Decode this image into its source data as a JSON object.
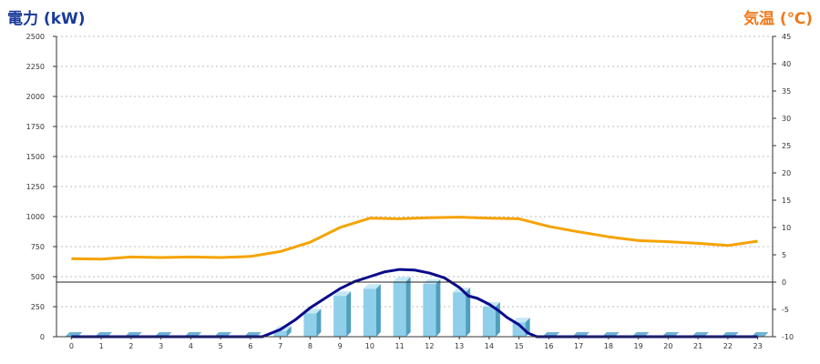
{
  "chart_data": {
    "type": "bar",
    "y_left_label": "電力 (kW)",
    "y_right_label": "気温 (℃)",
    "y_left_ticks": [
      "0",
      "250",
      "500",
      "750",
      "1000",
      "1250",
      "1500",
      "1750",
      "2000",
      "2250",
      "2500"
    ],
    "y_right_ticks": [
      "-10",
      "-5",
      "0",
      "5",
      "10",
      "15",
      "20",
      "25",
      "30",
      "35",
      "40",
      "45"
    ],
    "ylim_left": [
      0,
      2500
    ],
    "ylim_right": [
      -10,
      45
    ],
    "categories": [
      "0",
      "1",
      "2",
      "3",
      "4",
      "5",
      "6",
      "7",
      "8",
      "9",
      "10",
      "11",
      "12",
      "13",
      "14",
      "15",
      "16",
      "17",
      "18",
      "19",
      "20",
      "21",
      "22",
      "23"
    ],
    "grid": true,
    "series": [
      {
        "kind": "bar",
        "axis": "left",
        "values": [
          0,
          0,
          0,
          0,
          0,
          0,
          0,
          50,
          195,
          340,
          400,
          460,
          440,
          370,
          250,
          120,
          0,
          0,
          0,
          0,
          0,
          0,
          0,
          0
        ]
      },
      {
        "kind": "line",
        "axis": "left",
        "x": [
          0,
          1,
          2,
          3,
          4,
          5,
          6,
          6.4,
          7,
          7.5,
          8,
          8.5,
          9,
          9.5,
          10,
          10.5,
          11,
          11.5,
          12,
          12.5,
          13,
          13.3,
          13.6,
          14,
          14.3,
          14.6,
          15,
          15.3,
          15.6,
          16,
          17,
          18,
          19,
          20,
          21,
          22,
          23
        ],
        "values": [
          0,
          0,
          0,
          0,
          0,
          0,
          0,
          0,
          60,
          140,
          240,
          320,
          400,
          460,
          500,
          540,
          560,
          555,
          530,
          490,
          410,
          340,
          320,
          270,
          220,
          160,
          100,
          30,
          0,
          0,
          0,
          0,
          0,
          0,
          0,
          0,
          0
        ]
      },
      {
        "kind": "line",
        "axis": "right",
        "values": [
          4.3,
          4.2,
          4.6,
          4.5,
          4.6,
          4.5,
          4.7,
          5.6,
          7.3,
          10.0,
          11.7,
          11.6,
          11.8,
          11.9,
          11.7,
          11.6,
          10.2,
          9.2,
          8.3,
          7.6,
          7.4,
          7.1,
          6.7,
          7.5
        ]
      }
    ],
    "colors": {
      "bar_front": "#8fcfea",
      "bar_side": "#4f9fc0",
      "bar_top": "#c6e8f5",
      "zero_bar": "#6fb3d1",
      "line_power": "#0a0a8c",
      "line_temp": "#f5a300",
      "left_label": "#1a3a9a",
      "right_label": "#f07a1a"
    }
  }
}
